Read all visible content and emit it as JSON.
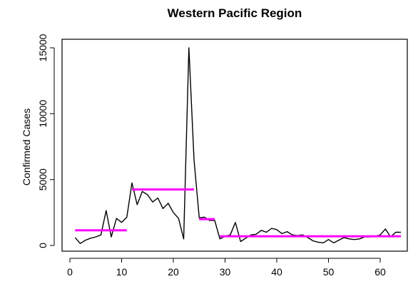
{
  "chart_data": {
    "type": "line",
    "title": "Western Pacific Region",
    "xlabel": "",
    "ylabel": "Confirmed Cases",
    "xlim": [
      0,
      65
    ],
    "ylim": [
      -300,
      16000
    ],
    "x_ticks": [
      0,
      10,
      20,
      30,
      40,
      50,
      60
    ],
    "y_ticks": [
      0,
      5000,
      10000,
      15000
    ],
    "grid": false,
    "series": [
      {
        "color": "#000000",
        "x": [
          1,
          2,
          3,
          4,
          5,
          6,
          7,
          8,
          9,
          10,
          11,
          12,
          13,
          14,
          15,
          16,
          17,
          18,
          19,
          20,
          21,
          22,
          23,
          24,
          25,
          26,
          27,
          28,
          29,
          30,
          31,
          32,
          33,
          34,
          35,
          36,
          37,
          38,
          39,
          40,
          41,
          42,
          43,
          44,
          45,
          46,
          47,
          48,
          49,
          50,
          51,
          52,
          53,
          54,
          55,
          56,
          57,
          58,
          59,
          60,
          61,
          62,
          63,
          64
        ],
        "values": [
          600,
          150,
          400,
          550,
          650,
          800,
          2650,
          650,
          2050,
          1750,
          2150,
          4750,
          3100,
          4100,
          3850,
          3300,
          3600,
          2800,
          3200,
          2500,
          2050,
          500,
          15000,
          6500,
          2100,
          2150,
          1900,
          1900,
          500,
          700,
          800,
          1750,
          300,
          550,
          800,
          850,
          1150,
          1000,
          1300,
          1200,
          900,
          1050,
          800,
          750,
          800,
          600,
          350,
          250,
          200,
          450,
          200,
          400,
          600,
          500,
          450,
          500,
          650,
          650,
          700,
          800,
          1250,
          650,
          1000,
          1000
        ]
      }
    ],
    "segments": [
      {
        "color": "#ff00ff",
        "x_start": 1,
        "x_end": 11,
        "value": 1150
      },
      {
        "color": "#ff00ff",
        "x_start": 12,
        "x_end": 24,
        "value": 4250
      },
      {
        "color": "#ff00ff",
        "x_start": 25,
        "x_end": 28,
        "value": 2000
      },
      {
        "color": "#ff00ff",
        "x_start": 29,
        "x_end": 64,
        "value": 700
      }
    ]
  }
}
